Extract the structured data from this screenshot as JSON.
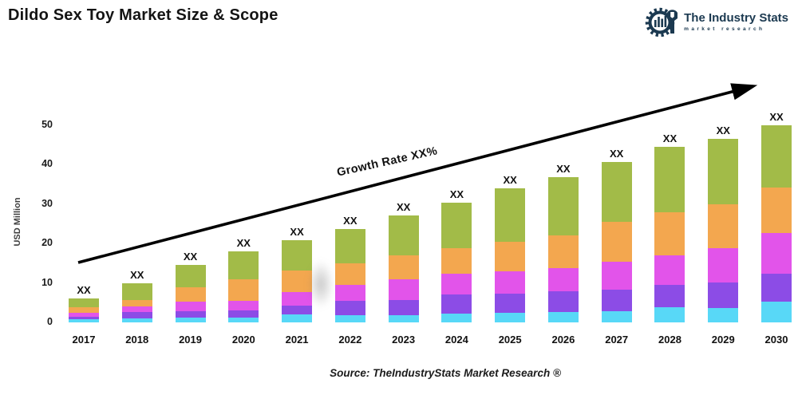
{
  "header": {
    "title": "Dildo Sex Toy Market Size & Scope",
    "logo": {
      "name": "The Industry Stats",
      "subtitle": "market research",
      "color": "#1b3950"
    }
  },
  "chart_data": {
    "type": "bar",
    "stacked": true,
    "title": "Dildo Sex Toy Market Size & Scope",
    "xlabel": "",
    "ylabel": "USD Million",
    "ylim": [
      0,
      50
    ],
    "yticks": [
      0,
      10,
      20,
      30,
      40,
      50
    ],
    "grid": false,
    "legend_position": "none",
    "categories": [
      "2017",
      "2018",
      "2019",
      "2020",
      "2021",
      "2022",
      "2023",
      "2024",
      "2025",
      "2026",
      "2027",
      "2028",
      "2029",
      "2030"
    ],
    "bar_labels": [
      "XX",
      "XX",
      "XX",
      "XX",
      "XX",
      "XX",
      "XX",
      "XX",
      "XX",
      "XX",
      "XX",
      "XX",
      "XX",
      "XX"
    ],
    "series": [
      {
        "name": "cyan",
        "color": "#58d8f7",
        "values": [
          0.8,
          1.0,
          1.3,
          1.3,
          2.0,
          1.9,
          1.9,
          2.2,
          2.5,
          2.7,
          2.9,
          3.9,
          3.6,
          5.2
        ]
      },
      {
        "name": "purple",
        "color": "#8c4ce6",
        "values": [
          0.7,
          1.6,
          1.5,
          1.8,
          2.2,
          3.6,
          3.8,
          4.8,
          4.8,
          5.2,
          5.4,
          5.5,
          6.5,
          7.1
        ]
      },
      {
        "name": "magenta",
        "color": "#e254ea",
        "values": [
          0.9,
          1.5,
          2.4,
          2.4,
          3.4,
          3.9,
          5.2,
          5.4,
          5.7,
          5.8,
          7.1,
          7.5,
          8.7,
          10.4
        ]
      },
      {
        "name": "orange",
        "color": "#f3a74f",
        "values": [
          1.4,
          1.5,
          3.6,
          5.5,
          5.6,
          5.6,
          6.1,
          6.3,
          7.5,
          8.4,
          10.0,
          11.0,
          11.0,
          11.4
        ]
      },
      {
        "name": "green",
        "color": "#a2bb48",
        "values": [
          2.3,
          4.4,
          5.7,
          6.9,
          7.6,
          8.6,
          10.1,
          11.7,
          13.5,
          14.7,
          15.3,
          16.5,
          16.6,
          15.9
        ]
      }
    ],
    "totals_estimated": [
      6.1,
      10.0,
      14.5,
      17.9,
      20.8,
      23.6,
      27.1,
      30.4,
      34.0,
      36.8,
      40.7,
      44.4,
      46.4,
      50.0
    ],
    "trend_annotation": {
      "label": "Growth Rate XX%"
    }
  },
  "footer": {
    "source": "Source: TheIndustryStats Market Research ®"
  }
}
